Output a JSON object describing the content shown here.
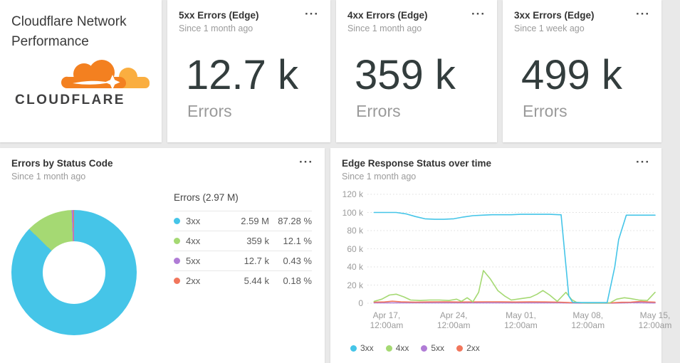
{
  "ui": {
    "menu_icon": "···"
  },
  "colors": {
    "3xx": "#45c5e8",
    "4xx": "#a5d973",
    "5xx": "#b07cd6",
    "2xx": "#f1765c",
    "brand_orange": "#f38020",
    "brand_light_orange": "#faae40"
  },
  "title_card": {
    "title": "Cloudflare Network Performance",
    "logo_text": "CLOUDFLARE"
  },
  "kpi_cards": [
    {
      "title": "5xx Errors (Edge)",
      "subtitle": "Since 1 month ago",
      "value": "12.7 k",
      "unit": "Errors"
    },
    {
      "title": "4xx Errors (Edge)",
      "subtitle": "Since 1 month ago",
      "value": "359 k",
      "unit": "Errors"
    },
    {
      "title": "3xx Errors (Edge)",
      "subtitle": "Since 1 week ago",
      "value": "499 k",
      "unit": "Errors"
    }
  ],
  "donut_card": {
    "title": "Errors by Status Code",
    "subtitle": "Since 1 month ago",
    "legend_title": "Errors (2.97 M)",
    "rows": [
      {
        "label": "3xx",
        "value": "2.59 M",
        "pct": "87.28 %"
      },
      {
        "label": "4xx",
        "value": "359 k",
        "pct": "12.1 %"
      },
      {
        "label": "5xx",
        "value": "12.7 k",
        "pct": "0.43 %"
      },
      {
        "label": "2xx",
        "value": "5.44 k",
        "pct": "0.18 %"
      }
    ]
  },
  "timeseries_card": {
    "title": "Edge Response Status over time",
    "subtitle": "Since 1 month ago",
    "legend": [
      "3xx",
      "4xx",
      "5xx",
      "2xx"
    ]
  },
  "chart_data": [
    {
      "type": "pie",
      "subtype": "donut",
      "title": "Errors by Status Code",
      "total_label": "Errors (2.97 M)",
      "labels": [
        "3xx",
        "4xx",
        "5xx",
        "2xx"
      ],
      "values": [
        2590000,
        359000,
        12700,
        5440
      ],
      "display_values": [
        "2.59 M",
        "359 k",
        "12.7 k",
        "5.44 k"
      ],
      "percentages": [
        87.28,
        12.1,
        0.43,
        0.18
      ],
      "donut_hole_ratio": 0.5,
      "start_angle_deg": 0,
      "direction": "clockwise"
    },
    {
      "type": "line",
      "title": "Edge Response Status over time",
      "x_axis": {
        "tick_labels": [
          [
            "Apr 17,",
            "12:00am"
          ],
          [
            "Apr 24,",
            "12:00am"
          ],
          [
            "May 01,",
            "12:00am"
          ],
          [
            "May 08,",
            "12:00am"
          ],
          [
            "May 15,",
            "12:00am"
          ]
        ],
        "tick_days": [
          2,
          9,
          16,
          23,
          30
        ],
        "domain_days": [
          0,
          30
        ]
      },
      "y_axis": {
        "tick_labels": [
          "120 k",
          "100 k",
          "80 k",
          "60 k",
          "40 k",
          "20 k",
          "0"
        ],
        "tick_values_k": [
          120,
          100,
          80,
          60,
          40,
          20,
          0
        ],
        "ylim_k": [
          0,
          120
        ],
        "grid": "dotted"
      },
      "legend_position": "bottom",
      "series": [
        {
          "name": "3xx",
          "points_day_valuek": [
            [
              0.7,
              100
            ],
            [
              2,
              100
            ],
            [
              3,
              100
            ],
            [
              4,
              98.5
            ],
            [
              5,
              95.5
            ],
            [
              6,
              93
            ],
            [
              7,
              92.5
            ],
            [
              8,
              92.5
            ],
            [
              9,
              93
            ],
            [
              10,
              95
            ],
            [
              11,
              96.5
            ],
            [
              12,
              97
            ],
            [
              13,
              97.5
            ],
            [
              14,
              97.5
            ],
            [
              15,
              97.5
            ],
            [
              16,
              98
            ],
            [
              17,
              98
            ],
            [
              18,
              98
            ],
            [
              19,
              98
            ],
            [
              20,
              97.5
            ],
            [
              20.2,
              97.5
            ],
            [
              21,
              8
            ],
            [
              21.4,
              1
            ],
            [
              22,
              0.7
            ],
            [
              23,
              0.7
            ],
            [
              24,
              0.7
            ],
            [
              25,
              0.7
            ],
            [
              25.8,
              40
            ],
            [
              26.2,
              70
            ],
            [
              27,
              97
            ],
            [
              28,
              97
            ],
            [
              29,
              97
            ],
            [
              30,
              97
            ]
          ]
        },
        {
          "name": "4xx",
          "points_day_valuek": [
            [
              0.7,
              2
            ],
            [
              1.5,
              4.5
            ],
            [
              2.3,
              9
            ],
            [
              3,
              10
            ],
            [
              3.8,
              7
            ],
            [
              4.5,
              3.5
            ],
            [
              5.5,
              3
            ],
            [
              6.5,
              3.5
            ],
            [
              7.5,
              3.5
            ],
            [
              8.5,
              3
            ],
            [
              9.3,
              4.5
            ],
            [
              9.8,
              2
            ],
            [
              10.4,
              6
            ],
            [
              11,
              1.5
            ],
            [
              11.6,
              12
            ],
            [
              12.1,
              36
            ],
            [
              12.8,
              27
            ],
            [
              13.6,
              14
            ],
            [
              14.3,
              8
            ],
            [
              15,
              3.5
            ],
            [
              16,
              5
            ],
            [
              17,
              6.5
            ],
            [
              17.7,
              10
            ],
            [
              18.3,
              14
            ],
            [
              19,
              9
            ],
            [
              19.8,
              2
            ],
            [
              20.7,
              12
            ],
            [
              21.3,
              4
            ],
            [
              21.8,
              1
            ],
            [
              22.5,
              0.3
            ],
            [
              23.5,
              0.2
            ],
            [
              24.5,
              0.2
            ],
            [
              25.3,
              0.5
            ],
            [
              26,
              4.5
            ],
            [
              26.8,
              6
            ],
            [
              27.5,
              5
            ],
            [
              28.3,
              3.5
            ],
            [
              29.2,
              3
            ],
            [
              30,
              12
            ]
          ]
        },
        {
          "name": "5xx",
          "points_day_valuek": [
            [
              0.7,
              0.4
            ],
            [
              3,
              0.4
            ],
            [
              6,
              0.5
            ],
            [
              9,
              0.4
            ],
            [
              12,
              0.5
            ],
            [
              15,
              0.4
            ],
            [
              18,
              0.5
            ],
            [
              20,
              0.4
            ],
            [
              21.5,
              0.2
            ],
            [
              23,
              0.1
            ],
            [
              25,
              0.1
            ],
            [
              26.5,
              0.3
            ],
            [
              28,
              0.6
            ],
            [
              29,
              0.4
            ],
            [
              30,
              0.3
            ]
          ]
        },
        {
          "name": "2xx",
          "points_day_valuek": [
            [
              0.7,
              1.2
            ],
            [
              1.8,
              1.4
            ],
            [
              2.6,
              2.2
            ],
            [
              3.5,
              1.5
            ],
            [
              5,
              1.2
            ],
            [
              6.5,
              1.4
            ],
            [
              8,
              1.6
            ],
            [
              9.5,
              1.3
            ],
            [
              11,
              1.4
            ],
            [
              12.5,
              1.6
            ],
            [
              14,
              1.5
            ],
            [
              15.5,
              1.3
            ],
            [
              17,
              1.5
            ],
            [
              18.5,
              1.4
            ],
            [
              20,
              1.2
            ],
            [
              21,
              0.7
            ],
            [
              22.5,
              0.4
            ],
            [
              24,
              0.4
            ],
            [
              25.5,
              0.5
            ],
            [
              26.5,
              1
            ],
            [
              27.5,
              1.2
            ],
            [
              28.5,
              2
            ],
            [
              29.3,
              1.4
            ],
            [
              30,
              1.2
            ]
          ]
        }
      ]
    }
  ]
}
